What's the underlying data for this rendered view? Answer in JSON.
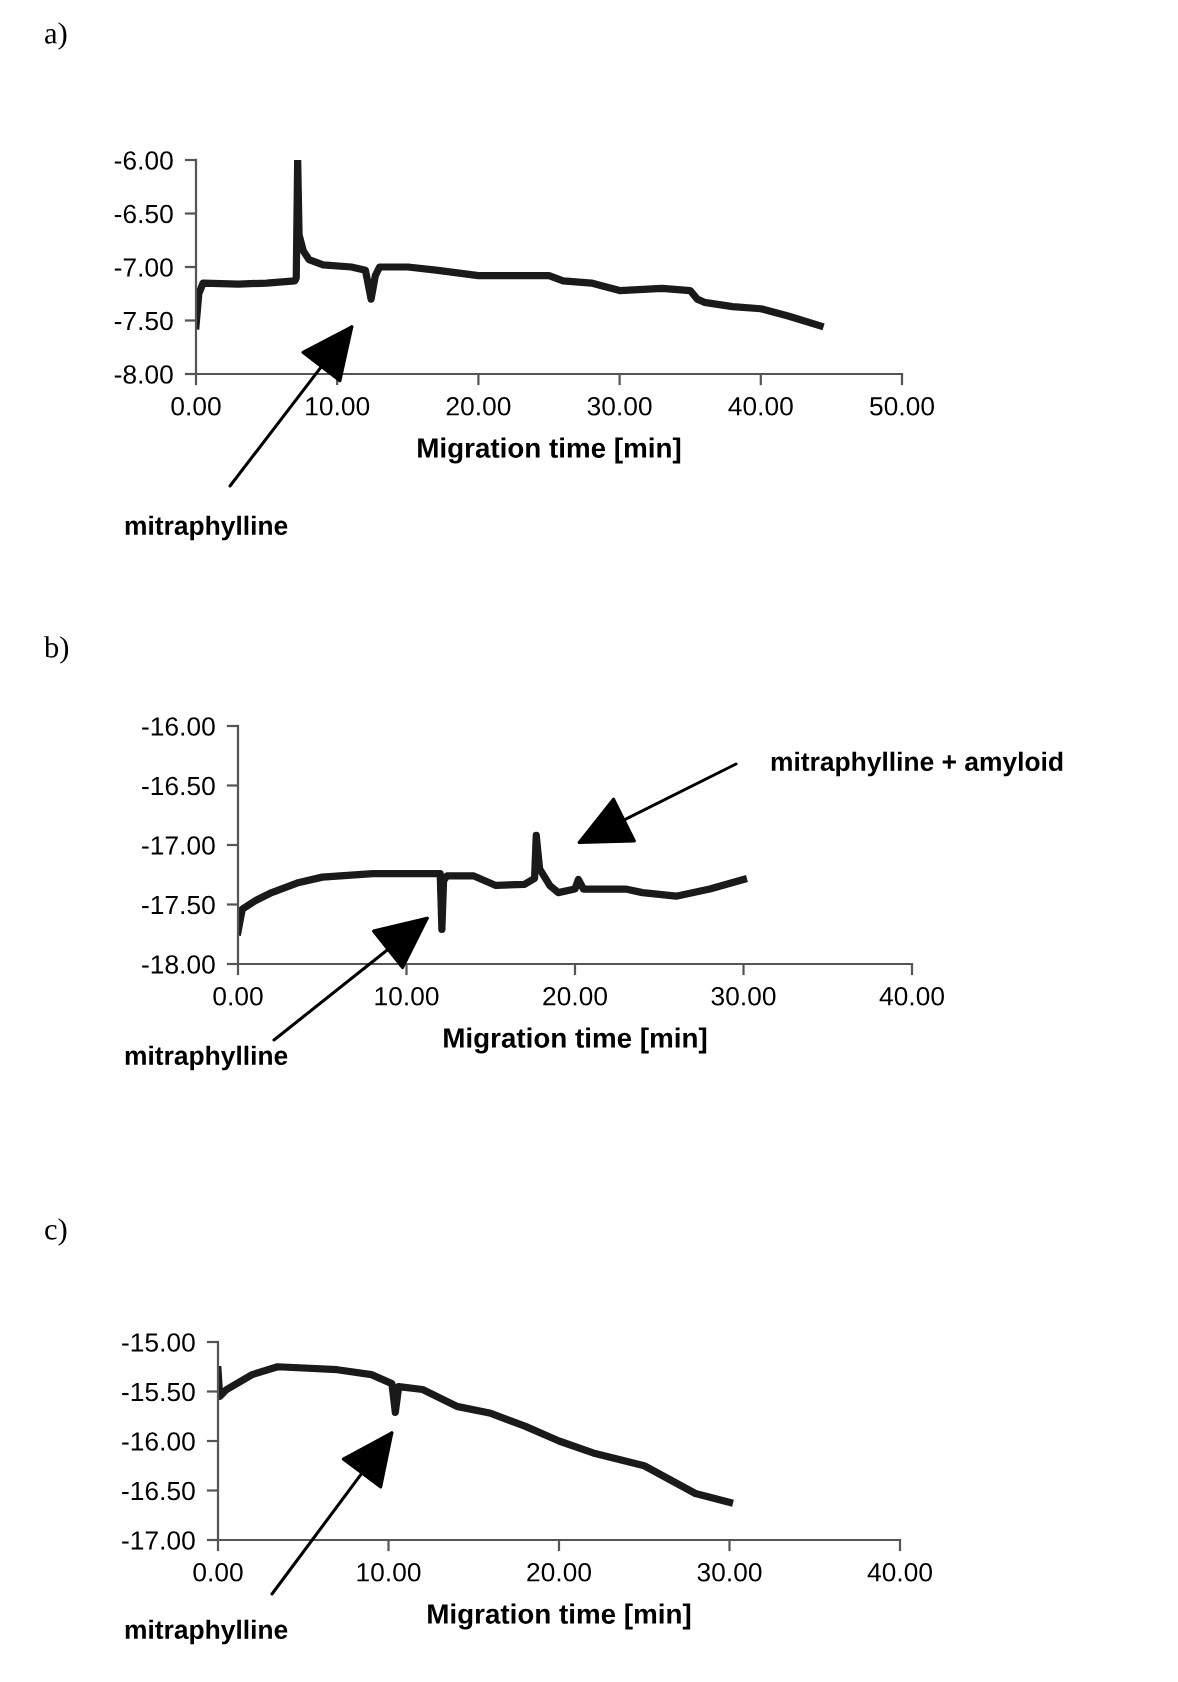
{
  "chart_data": [
    {
      "type": "line",
      "title": "a)",
      "xlabel": "Migration time [min]",
      "xlim": [
        0,
        50
      ],
      "ylim": [
        -8,
        -6
      ],
      "xticks": [
        {
          "value": 0,
          "label": "0.00"
        },
        {
          "value": 10,
          "label": "10.00"
        },
        {
          "value": 20,
          "label": "20.00"
        },
        {
          "value": 30,
          "label": "30.00"
        },
        {
          "value": 40,
          "label": "40.00"
        },
        {
          "value": 50,
          "label": "50.00"
        }
      ],
      "yticks": [
        {
          "value": -8,
          "label": "-8.00"
        },
        {
          "value": -7.5,
          "label": "-7.50"
        },
        {
          "value": -7,
          "label": "-7.00"
        },
        {
          "value": -6.5,
          "label": "-6.50"
        },
        {
          "value": -6,
          "label": "-6.00"
        }
      ],
      "grid": false,
      "legend": false,
      "marker": "none",
      "line_style": "solid",
      "annotations": [
        "mitraphylline"
      ],
      "series": [
        {
          "color": "#1a1a1a",
          "x": [
            0,
            0.2,
            0.5,
            3,
            5,
            7,
            7.1,
            7.2,
            7.3,
            7.6,
            8,
            9,
            11,
            12,
            12.4,
            12.7,
            13,
            15,
            17,
            20,
            25,
            26,
            28,
            30,
            33,
            35,
            35.5,
            36,
            38,
            40,
            42,
            44.2
          ],
          "values": [
            -7.55,
            -7.25,
            -7.15,
            -7.16,
            -7.15,
            -7.13,
            -7.1,
            -6.0,
            -6.7,
            -6.85,
            -6.93,
            -6.98,
            -7.0,
            -7.03,
            -7.3,
            -7.08,
            -7.0,
            -7.0,
            -7.03,
            -7.08,
            -7.08,
            -7.13,
            -7.15,
            -7.22,
            -7.2,
            -7.22,
            -7.3,
            -7.33,
            -7.37,
            -7.39,
            -7.46,
            -7.55
          ]
        }
      ]
    },
    {
      "type": "line",
      "title": "b)",
      "xlabel": "Migration time [min]",
      "xlim": [
        0,
        40
      ],
      "ylim": [
        -18,
        -16
      ],
      "xticks": [
        {
          "value": 0,
          "label": "0.00"
        },
        {
          "value": 10,
          "label": "10.00"
        },
        {
          "value": 20,
          "label": "20.00"
        },
        {
          "value": 30,
          "label": "30.00"
        },
        {
          "value": 40,
          "label": "40.00"
        }
      ],
      "yticks": [
        {
          "value": -18,
          "label": "-18.00"
        },
        {
          "value": -17.5,
          "label": "-17.50"
        },
        {
          "value": -17,
          "label": "-17.00"
        },
        {
          "value": -16.5,
          "label": "-16.50"
        },
        {
          "value": -16,
          "label": "-16.00"
        }
      ],
      "grid": false,
      "legend": false,
      "marker": "none",
      "line_style": "solid",
      "annotations": [
        "mitraphylline + amyloid",
        "mitraphylline"
      ],
      "series": [
        {
          "color": "#1a1a1a",
          "x": [
            0,
            0.25,
            1,
            2,
            3.5,
            5,
            8,
            10,
            12,
            12.1,
            12.2,
            12.4,
            14,
            15.3,
            17,
            17.6,
            17.7,
            17.9,
            18.5,
            19,
            20,
            20.2,
            20.5,
            23,
            24,
            26,
            28,
            30
          ],
          "values": [
            -17.73,
            -17.54,
            -17.47,
            -17.4,
            -17.32,
            -17.27,
            -17.24,
            -17.24,
            -17.24,
            -17.71,
            -17.3,
            -17.26,
            -17.26,
            -17.34,
            -17.33,
            -17.28,
            -16.92,
            -17.2,
            -17.34,
            -17.4,
            -17.37,
            -17.29,
            -17.37,
            -17.37,
            -17.4,
            -17.43,
            -17.37,
            -17.29
          ]
        }
      ]
    },
    {
      "type": "line",
      "title": "c)",
      "xlabel": "Migration time [min]",
      "xlim": [
        0,
        40
      ],
      "ylim": [
        -17,
        -15
      ],
      "xticks": [
        {
          "value": 0,
          "label": "0.00"
        },
        {
          "value": 10,
          "label": "10.00"
        },
        {
          "value": 20,
          "label": "20.00"
        },
        {
          "value": 30,
          "label": "30.00"
        },
        {
          "value": 40,
          "label": "40.00"
        }
      ],
      "yticks": [
        {
          "value": -17,
          "label": "-17.00"
        },
        {
          "value": -16.5,
          "label": "-16.50"
        },
        {
          "value": -16,
          "label": "-16.00"
        },
        {
          "value": -15.5,
          "label": "-15.50"
        },
        {
          "value": -15,
          "label": "-15.00"
        }
      ],
      "grid": false,
      "legend": false,
      "marker": "none",
      "line_style": "solid",
      "annotations": [
        "mitraphylline"
      ],
      "series": [
        {
          "color": "#1a1a1a",
          "x": [
            0,
            0.1,
            0.5,
            2,
            3.5,
            7,
            9,
            10.2,
            10.4,
            10.6,
            12,
            14,
            16,
            18,
            20,
            22,
            25,
            28,
            30
          ],
          "values": [
            -15.28,
            -15.55,
            -15.48,
            -15.33,
            -15.25,
            -15.28,
            -15.33,
            -15.42,
            -15.71,
            -15.45,
            -15.48,
            -15.65,
            -15.72,
            -15.85,
            -16.0,
            -16.12,
            -16.25,
            -16.53,
            -16.62
          ]
        }
      ]
    }
  ]
}
